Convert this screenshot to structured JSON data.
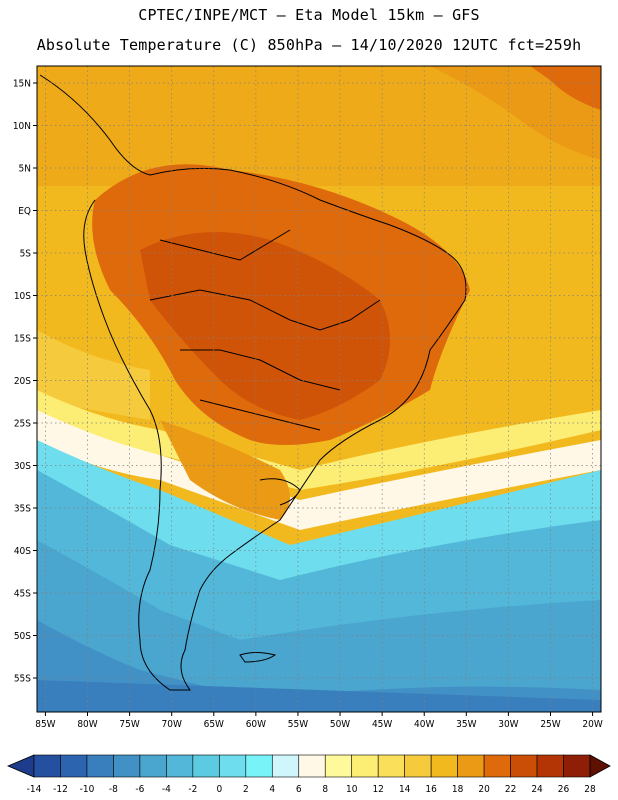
{
  "title": {
    "line1": "CPTEC/INPE/MCT –  Eta Model 15km – GFS",
    "line2": "Absolute Temperature (C) 850hPa – 14/10/2020 12UTC fct=259h"
  },
  "map": {
    "lon_range": [
      -86,
      -19
    ],
    "lat_range": [
      -59,
      17
    ],
    "lat_ticks": [
      {
        "value": 15,
        "label": "15N"
      },
      {
        "value": 10,
        "label": "10N"
      },
      {
        "value": 5,
        "label": "5N"
      },
      {
        "value": 0,
        "label": "EQ"
      },
      {
        "value": -5,
        "label": "5S"
      },
      {
        "value": -10,
        "label": "10S"
      },
      {
        "value": -15,
        "label": "15S"
      },
      {
        "value": -20,
        "label": "20S"
      },
      {
        "value": -25,
        "label": "25S"
      },
      {
        "value": -30,
        "label": "30S"
      },
      {
        "value": -35,
        "label": "35S"
      },
      {
        "value": -40,
        "label": "40S"
      },
      {
        "value": -45,
        "label": "45S"
      },
      {
        "value": -50,
        "label": "50S"
      },
      {
        "value": -55,
        "label": "55S"
      }
    ],
    "lon_ticks": [
      {
        "value": -85,
        "label": "85W"
      },
      {
        "value": -80,
        "label": "80W"
      },
      {
        "value": -75,
        "label": "75W"
      },
      {
        "value": -70,
        "label": "70W"
      },
      {
        "value": -65,
        "label": "65W"
      },
      {
        "value": -60,
        "label": "60W"
      },
      {
        "value": -55,
        "label": "55W"
      },
      {
        "value": -50,
        "label": "50W"
      },
      {
        "value": -45,
        "label": "45W"
      },
      {
        "value": -40,
        "label": "40W"
      },
      {
        "value": -35,
        "label": "35W"
      },
      {
        "value": -30,
        "label": "30W"
      },
      {
        "value": -25,
        "label": "25W"
      },
      {
        "value": -20,
        "label": "20W"
      }
    ]
  },
  "colorbar": {
    "labels": [
      "-14",
      "-12",
      "-10",
      "-8",
      "-6",
      "-4",
      "-2",
      "0",
      "2",
      "4",
      "6",
      "8",
      "10",
      "12",
      "14",
      "16",
      "18",
      "20",
      "22",
      "24",
      "26",
      "28"
    ],
    "colors": [
      "#1e3c8c",
      "#25509f",
      "#2d64b0",
      "#3a7fbd",
      "#4291c6",
      "#4aa5cf",
      "#52b7d8",
      "#5ccbe2",
      "#6edded",
      "#78f3f8",
      "#cff6fb",
      "#fff8e6",
      "#fef99a",
      "#fcee74",
      "#f9df5a",
      "#f5ca3d",
      "#f2b91f",
      "#eb9a15",
      "#df6a0c",
      "#cb4e06",
      "#b33505",
      "#8e1e05",
      "#5e1003"
    ]
  }
}
